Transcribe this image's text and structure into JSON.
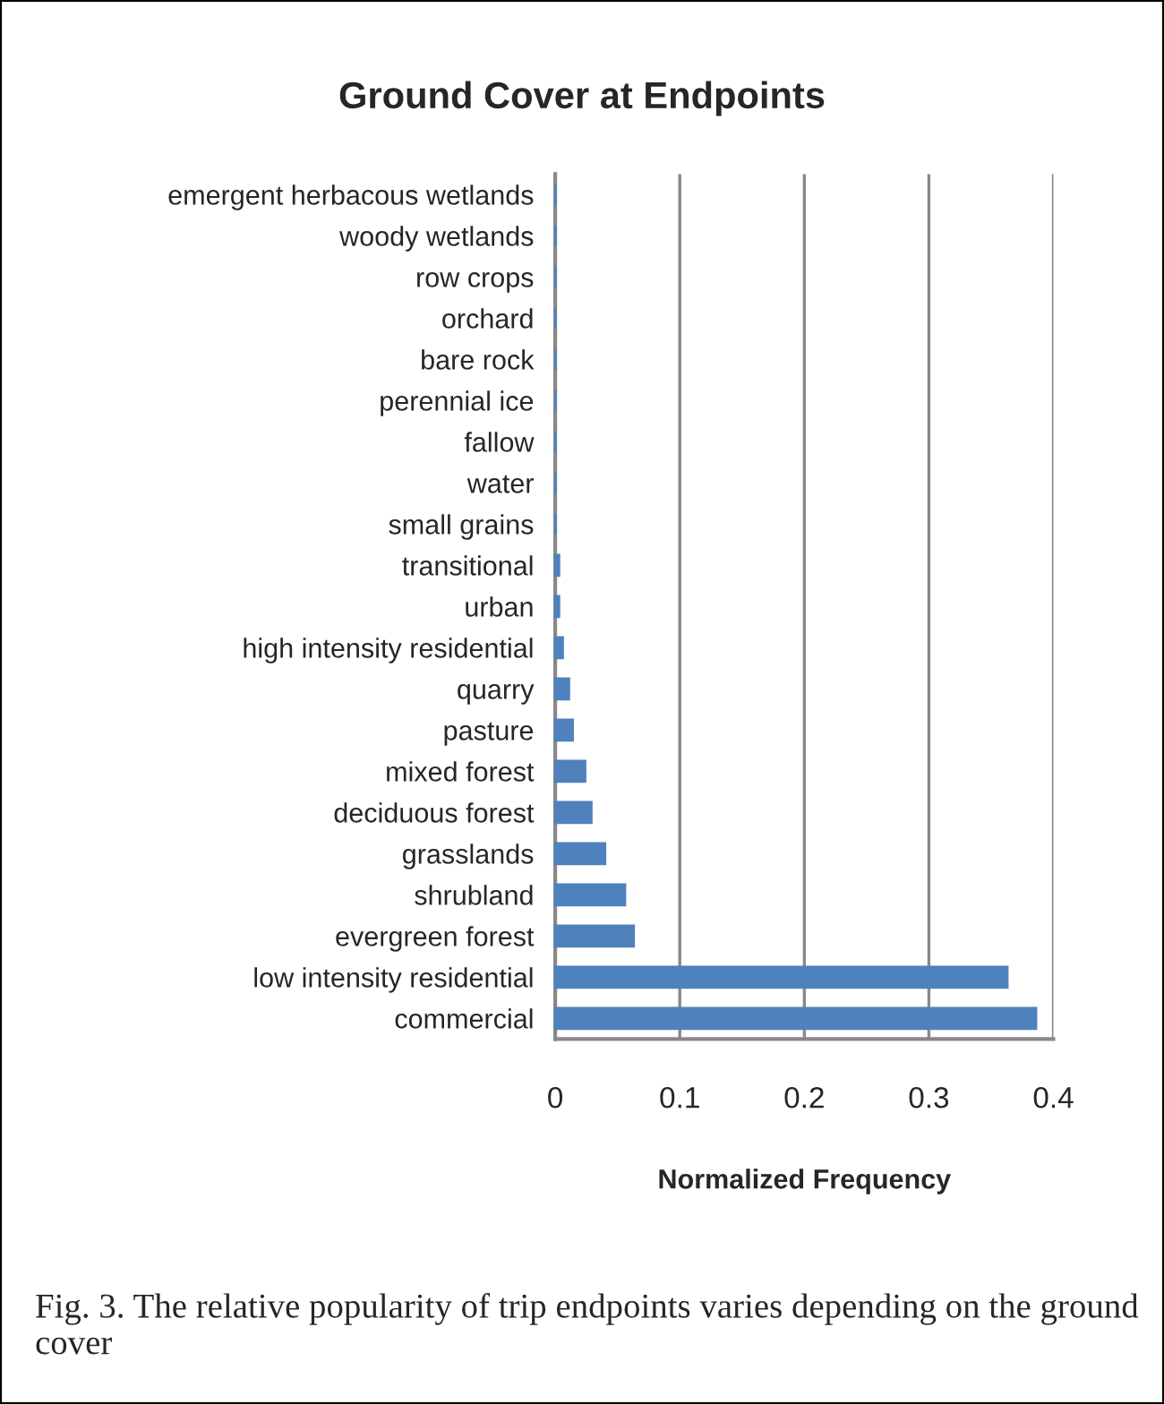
{
  "chart_data": {
    "type": "bar",
    "orientation": "horizontal",
    "title": "Ground Cover at Endpoints",
    "xlabel": "Normalized Frequency",
    "categories": [
      "emergent herbacous wetlands",
      "woody wetlands",
      "row crops",
      "orchard",
      "bare rock",
      "perennial ice",
      "fallow",
      "water",
      "small grains",
      "transitional",
      "urban",
      "high intensity residential",
      "quarry",
      "pasture",
      "mixed forest",
      "deciduous forest",
      "grasslands",
      "shrubland",
      "evergreen forest",
      "low intensity residential",
      "commercial"
    ],
    "values": [
      0,
      0,
      0,
      0,
      0,
      0,
      0,
      0,
      0,
      0.003,
      0.003,
      0.006,
      0.011,
      0.014,
      0.024,
      0.029,
      0.04,
      0.056,
      0.063,
      0.363,
      0.386
    ],
    "color": "#4f81bd",
    "xlim": [
      0,
      0.4
    ],
    "xticks": [
      0,
      0.1,
      0.2,
      0.3,
      0.4
    ],
    "grid": "x",
    "annotations": [
      "Fig. 3. The relative popularity of trip endpoints varies depending on the ground cover"
    ]
  }
}
